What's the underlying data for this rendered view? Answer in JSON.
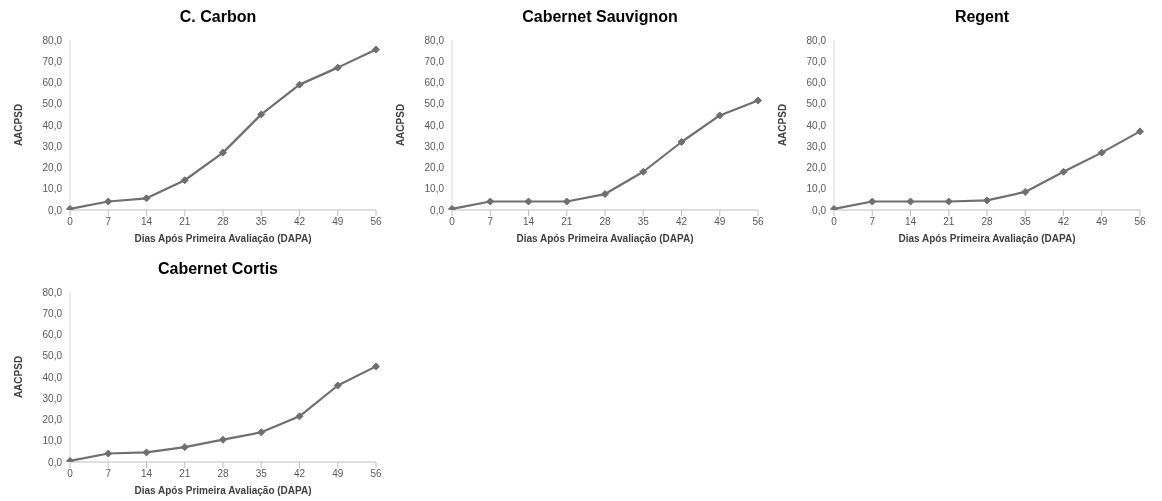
{
  "chart_data": [
    {
      "type": "line",
      "title": "C. Carbon",
      "xlabel": "Dias Após Primeira Avaliação (DAPA)",
      "ylabel": "AACPSD",
      "categories": [
        "0",
        "7",
        "14",
        "21",
        "28",
        "35",
        "42",
        "49",
        "56"
      ],
      "series": [
        {
          "color": "#6f6f6f",
          "values": [
            0.5,
            4,
            5.5,
            14,
            27,
            45,
            59,
            67,
            75.5
          ]
        }
      ],
      "ylim": [
        0,
        80
      ],
      "yticks": [
        {
          "value": 0,
          "label": "0,0"
        },
        {
          "value": 10,
          "label": "10,0"
        },
        {
          "value": 20,
          "label": "20,0"
        },
        {
          "value": 30,
          "label": "30,0"
        },
        {
          "value": 40,
          "label": "40,0"
        },
        {
          "value": 50,
          "label": "50,0"
        },
        {
          "value": 60,
          "label": "60,0"
        },
        {
          "value": 70,
          "label": "70,0"
        },
        {
          "value": 80,
          "label": "80,0"
        }
      ],
      "grid": false,
      "legend": false,
      "marker": "diamond",
      "line_style": "solid"
    },
    {
      "type": "line",
      "title": "Cabernet Sauvignon",
      "xlabel": "Dias Após Primeira Avaliação (DAPA)",
      "ylabel": "AACPSD",
      "categories": [
        "0",
        "7",
        "14",
        "21",
        "28",
        "35",
        "42",
        "49",
        "56"
      ],
      "series": [
        {
          "color": "#6f6f6f",
          "values": [
            0.5,
            4,
            4,
            4,
            7.5,
            18,
            32,
            44.5,
            51.5
          ]
        }
      ],
      "ylim": [
        0,
        80
      ],
      "yticks": [
        {
          "value": 0,
          "label": "0,0"
        },
        {
          "value": 10,
          "label": "10,0"
        },
        {
          "value": 20,
          "label": "20,0"
        },
        {
          "value": 30,
          "label": "30,0"
        },
        {
          "value": 40,
          "label": "40,0"
        },
        {
          "value": 50,
          "label": "50,0"
        },
        {
          "value": 60,
          "label": "60,0"
        },
        {
          "value": 70,
          "label": "70,0"
        },
        {
          "value": 80,
          "label": "80,0"
        }
      ],
      "grid": false,
      "legend": false,
      "marker": "diamond",
      "line_style": "solid"
    },
    {
      "type": "line",
      "title": "Regent",
      "xlabel": "Dias Após Primeira Avaliação (DAPA)",
      "ylabel": "AACPSD",
      "categories": [
        "0",
        "7",
        "14",
        "21",
        "28",
        "35",
        "42",
        "49",
        "56"
      ],
      "series": [
        {
          "color": "#6f6f6f",
          "values": [
            0.5,
            4,
            4,
            4,
            4.5,
            8.5,
            18,
            27,
            37
          ]
        }
      ],
      "ylim": [
        0,
        80
      ],
      "yticks": [
        {
          "value": 0,
          "label": "0,0"
        },
        {
          "value": 10,
          "label": "10,0"
        },
        {
          "value": 20,
          "label": "20,0"
        },
        {
          "value": 30,
          "label": "30,0"
        },
        {
          "value": 40,
          "label": "40,0"
        },
        {
          "value": 50,
          "label": "50,0"
        },
        {
          "value": 60,
          "label": "60,0"
        },
        {
          "value": 70,
          "label": "70,0"
        },
        {
          "value": 80,
          "label": "80,0"
        }
      ],
      "grid": false,
      "legend": false,
      "marker": "diamond",
      "line_style": "solid"
    },
    {
      "type": "line",
      "title": "Cabernet Cortis",
      "xlabel": "Dias Após Primeira Avaliação (DAPA)",
      "ylabel": "AACPSD",
      "categories": [
        "0",
        "7",
        "14",
        "21",
        "28",
        "35",
        "42",
        "49",
        "56"
      ],
      "series": [
        {
          "color": "#6f6f6f",
          "values": [
            0.5,
            4,
            4.5,
            7,
            10.5,
            14,
            21.5,
            36,
            45
          ]
        }
      ],
      "ylim": [
        0,
        80
      ],
      "yticks": [
        {
          "value": 0,
          "label": "0,0"
        },
        {
          "value": 10,
          "label": "10,0"
        },
        {
          "value": 20,
          "label": "20,0"
        },
        {
          "value": 30,
          "label": "30,0"
        },
        {
          "value": 40,
          "label": "40,0"
        },
        {
          "value": 50,
          "label": "50,0"
        },
        {
          "value": 60,
          "label": "60,0"
        },
        {
          "value": 70,
          "label": "70,0"
        },
        {
          "value": 80,
          "label": "80,0"
        }
      ],
      "grid": false,
      "legend": false,
      "marker": "diamond",
      "line_style": "solid"
    }
  ]
}
